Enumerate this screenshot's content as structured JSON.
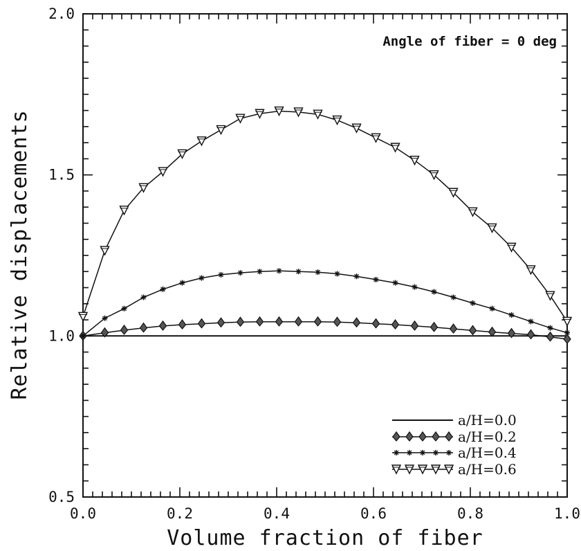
{
  "chart_data": {
    "type": "line",
    "xlabel": "Volume fraction of fiber",
    "ylabel": "Relative displacements",
    "annotation": "Angle of fiber = 0 deg",
    "xlim": [
      0.0,
      1.0
    ],
    "ylim": [
      0.5,
      2.0
    ],
    "x_ticks": [
      0.0,
      0.2,
      0.4,
      0.6,
      0.8,
      1.0
    ],
    "x_tick_labels": [
      "0.0",
      "0.2",
      "0.4",
      "0.6",
      "0.8",
      "1.0"
    ],
    "y_ticks": [
      0.5,
      1.0,
      1.5,
      2.0
    ],
    "y_tick_labels": [
      "0.5",
      "1.0",
      "1.5",
      "2.0"
    ],
    "grid": false,
    "legend_position": "bottom-right",
    "x": [
      0.0,
      0.045,
      0.085,
      0.125,
      0.165,
      0.205,
      0.245,
      0.285,
      0.325,
      0.365,
      0.405,
      0.445,
      0.485,
      0.525,
      0.565,
      0.605,
      0.645,
      0.685,
      0.725,
      0.765,
      0.805,
      0.845,
      0.885,
      0.925,
      0.965,
      1.0
    ],
    "series": [
      {
        "name": "a/H=0.0",
        "marker": "none",
        "values": [
          1.0,
          1.0,
          1.0,
          1.0,
          1.0,
          1.0,
          1.0,
          1.0,
          1.0,
          1.0,
          1.0,
          1.0,
          1.0,
          1.0,
          1.0,
          1.0,
          1.0,
          1.0,
          1.0,
          1.0,
          1.0,
          1.0,
          1.0,
          1.0,
          1.0,
          1.0
        ]
      },
      {
        "name": "a/H=0.2",
        "marker": "filled-drop",
        "values": [
          1.0,
          1.01,
          1.018,
          1.025,
          1.031,
          1.035,
          1.038,
          1.041,
          1.043,
          1.044,
          1.044,
          1.044,
          1.044,
          1.043,
          1.041,
          1.038,
          1.035,
          1.031,
          1.027,
          1.022,
          1.017,
          1.012,
          1.008,
          1.004,
          0.997,
          0.99
        ]
      },
      {
        "name": "a/H=0.4",
        "marker": "star",
        "values": [
          1.0,
          1.055,
          1.085,
          1.12,
          1.145,
          1.165,
          1.18,
          1.19,
          1.196,
          1.2,
          1.202,
          1.2,
          1.198,
          1.193,
          1.185,
          1.175,
          1.165,
          1.152,
          1.137,
          1.12,
          1.102,
          1.085,
          1.065,
          1.045,
          1.025,
          1.01
        ]
      },
      {
        "name": "a/H=0.6",
        "marker": "open-triangle",
        "values": [
          1.06,
          1.265,
          1.39,
          1.46,
          1.51,
          1.565,
          1.605,
          1.64,
          1.675,
          1.69,
          1.698,
          1.695,
          1.688,
          1.67,
          1.645,
          1.615,
          1.585,
          1.545,
          1.5,
          1.445,
          1.385,
          1.335,
          1.275,
          1.205,
          1.125,
          1.045
        ]
      }
    ]
  }
}
